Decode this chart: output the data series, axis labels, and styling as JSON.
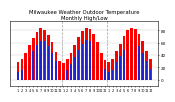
{
  "title": "Milwaukee Weather Outdoor Temperature",
  "subtitle": "Monthly High/Low",
  "title_fontsize": 3.8,
  "high_color": "#ff0000",
  "low_color": "#2222cc",
  "background_color": "#ffffff",
  "grid_color": "#cccccc",
  "months_labels": [
    "1",
    "2",
    "3",
    "4",
    "5",
    "6",
    "7",
    "8",
    "9",
    "10",
    "11",
    "12",
    "1",
    "2",
    "3",
    "4",
    "5",
    "6",
    "7",
    "8",
    "9",
    "10",
    "11",
    "12",
    "1",
    "2",
    "3",
    "4",
    "5",
    "6",
    "7",
    "8",
    "9",
    "10",
    "11",
    "12"
  ],
  "highs": [
    28,
    33,
    44,
    57,
    68,
    78,
    83,
    81,
    73,
    61,
    45,
    31,
    27,
    33,
    44,
    57,
    69,
    79,
    84,
    82,
    74,
    61,
    44,
    32,
    29,
    34,
    46,
    58,
    70,
    80,
    84,
    82,
    74,
    62,
    46,
    33
  ],
  "lows": [
    12,
    16,
    27,
    37,
    47,
    57,
    63,
    62,
    54,
    43,
    30,
    17,
    11,
    15,
    26,
    37,
    48,
    58,
    64,
    62,
    54,
    42,
    30,
    17,
    12,
    16,
    28,
    38,
    48,
    58,
    64,
    62,
    54,
    43,
    31,
    17
  ],
  "ylim": [
    -10,
    95
  ],
  "yticks": [
    0,
    20,
    40,
    60,
    80
  ],
  "tick_fontsize": 3.0,
  "xtick_fontsize": 2.5
}
